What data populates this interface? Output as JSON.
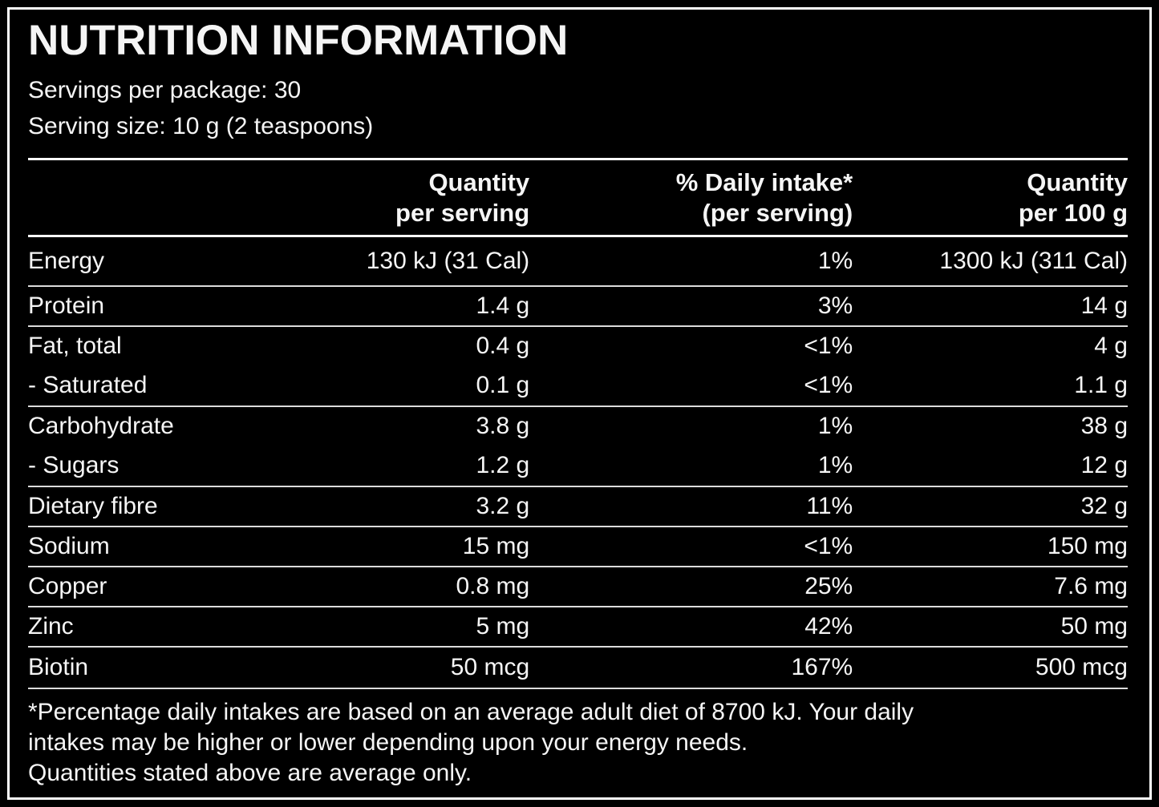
{
  "colors": {
    "background": "#000000",
    "text": "#f5f5f5",
    "frame": "#ffffff",
    "rule": "#dcdcdc"
  },
  "panel": {
    "title": "NUTRITION INFORMATION",
    "servings_per_package": "Servings per package: 30",
    "serving_size": "Serving size: 10 g (2 teaspoons)"
  },
  "table": {
    "headers": [
      {
        "line1": "",
        "line2": ""
      },
      {
        "line1": "Quantity",
        "line2": "per serving"
      },
      {
        "line1": "% Daily intake*",
        "line2": "(per serving)"
      },
      {
        "line1": "Quantity",
        "line2": "per 100 g"
      }
    ],
    "rows": [
      {
        "nutrient": "Energy",
        "per_serving": "130 kJ (31 Cal)",
        "daily_intake": "1%",
        "per_100g": "1300 kJ (311 Cal)",
        "divider": true
      },
      {
        "nutrient": "Protein",
        "per_serving": "1.4 g",
        "daily_intake": "3%",
        "per_100g": "14 g",
        "divider": true
      },
      {
        "nutrient": "Fat, total",
        "per_serving": "0.4 g",
        "daily_intake": "<1%",
        "per_100g": "4 g",
        "divider": false
      },
      {
        "nutrient": "- Saturated",
        "per_serving": "0.1 g",
        "daily_intake": "<1%",
        "per_100g": "1.1 g",
        "divider": true
      },
      {
        "nutrient": "Carbohydrate",
        "per_serving": "3.8 g",
        "daily_intake": "1%",
        "per_100g": "38 g",
        "divider": false
      },
      {
        "nutrient": "- Sugars",
        "per_serving": "1.2 g",
        "daily_intake": "1%",
        "per_100g": "12 g",
        "divider": true
      },
      {
        "nutrient": "Dietary fibre",
        "per_serving": "3.2 g",
        "daily_intake": "11%",
        "per_100g": "32 g",
        "divider": true
      },
      {
        "nutrient": "Sodium",
        "per_serving": "15 mg",
        "daily_intake": "<1%",
        "per_100g": "150 mg",
        "divider": true
      },
      {
        "nutrient": "Copper",
        "per_serving": "0.8 mg",
        "daily_intake": "25%",
        "per_100g": "7.6 mg",
        "divider": true
      },
      {
        "nutrient": "Zinc",
        "per_serving": "5 mg",
        "daily_intake": "42%",
        "per_100g": "50 mg",
        "divider": true
      },
      {
        "nutrient": "Biotin",
        "per_serving": "50 mcg",
        "daily_intake": "167%",
        "per_100g": "500 mcg",
        "divider": true
      }
    ]
  },
  "footnote": {
    "lines": [
      "*Percentage daily intakes are based on an average adult diet of 8700 kJ. Your daily",
      "intakes may be higher or lower depending upon your energy needs.",
      "Quantities stated above are average only."
    ]
  }
}
